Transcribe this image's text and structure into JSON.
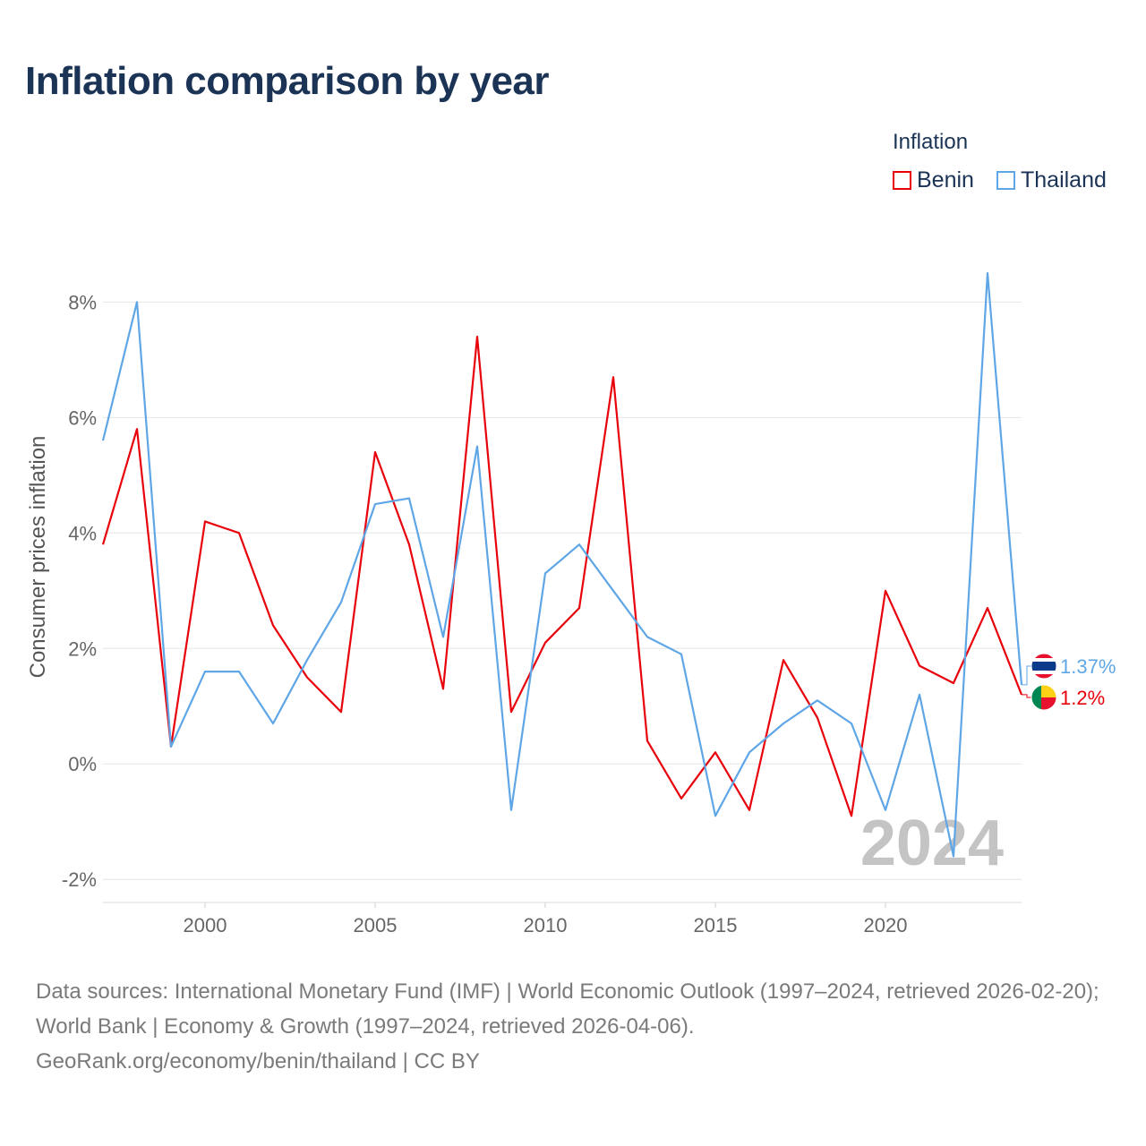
{
  "header": {
    "title": "Inflation comparison by year"
  },
  "legend": {
    "title": "Inflation",
    "items": [
      {
        "name": "Benin",
        "color": "#e8000b"
      },
      {
        "name": "Thailand",
        "color": "#5fa6e6"
      }
    ]
  },
  "chart_data": {
    "type": "line",
    "title": "Inflation comparison by year",
    "xlabel": "",
    "ylabel": "Consumer prices inflation",
    "xlim": [
      1997,
      2024
    ],
    "ylim": [
      -2.4,
      9.2
    ],
    "x_ticks": [
      2000,
      2005,
      2010,
      2015,
      2020
    ],
    "y_ticks": [
      {
        "value": -2,
        "label": "-2%"
      },
      {
        "value": 0,
        "label": "0%"
      },
      {
        "value": 2,
        "label": "2%"
      },
      {
        "value": 4,
        "label": "4%"
      },
      {
        "value": 6,
        "label": "6%"
      },
      {
        "value": 8,
        "label": "8%"
      }
    ],
    "grid": true,
    "legend_position": "top-right",
    "year_annotation": "2024",
    "x": [
      1997,
      1998,
      1999,
      2000,
      2001,
      2002,
      2003,
      2004,
      2005,
      2006,
      2007,
      2008,
      2009,
      2010,
      2011,
      2012,
      2013,
      2014,
      2015,
      2016,
      2017,
      2018,
      2019,
      2020,
      2021,
      2022,
      2023,
      2024
    ],
    "series": [
      {
        "name": "Benin",
        "color": "#e8000b",
        "end_label": "1.2%",
        "flag": "benin-flag-icon",
        "values": [
          3.8,
          5.8,
          0.3,
          4.2,
          4.0,
          2.4,
          1.5,
          0.9,
          5.4,
          3.8,
          1.3,
          7.4,
          0.9,
          2.1,
          2.7,
          6.7,
          0.4,
          -0.6,
          0.2,
          -0.8,
          1.8,
          0.8,
          -0.9,
          3.0,
          1.7,
          1.4,
          2.7,
          1.2
        ]
      },
      {
        "name": "Thailand",
        "color": "#5fa6e6",
        "end_label": "1.37%",
        "flag": "thailand-flag-icon",
        "values": [
          5.6,
          8.0,
          0.3,
          1.6,
          1.6,
          0.7,
          1.8,
          2.8,
          4.5,
          4.6,
          2.2,
          5.5,
          -0.8,
          3.3,
          3.8,
          3.0,
          2.2,
          1.9,
          -0.9,
          0.2,
          0.7,
          1.1,
          0.7,
          -0.8,
          1.2,
          -1.6,
          8.5,
          1.37
        ]
      }
    ]
  },
  "footer": {
    "sources": "Data sources: International Monetary Fund (IMF) | World Economic Outlook (1997–2024, retrieved 2026-02-20); World Bank | Economy & Growth (1997–2024, retrieved 2026-04-06).",
    "credit": "GeoRank.org/economy/benin/thailand | CC BY"
  }
}
